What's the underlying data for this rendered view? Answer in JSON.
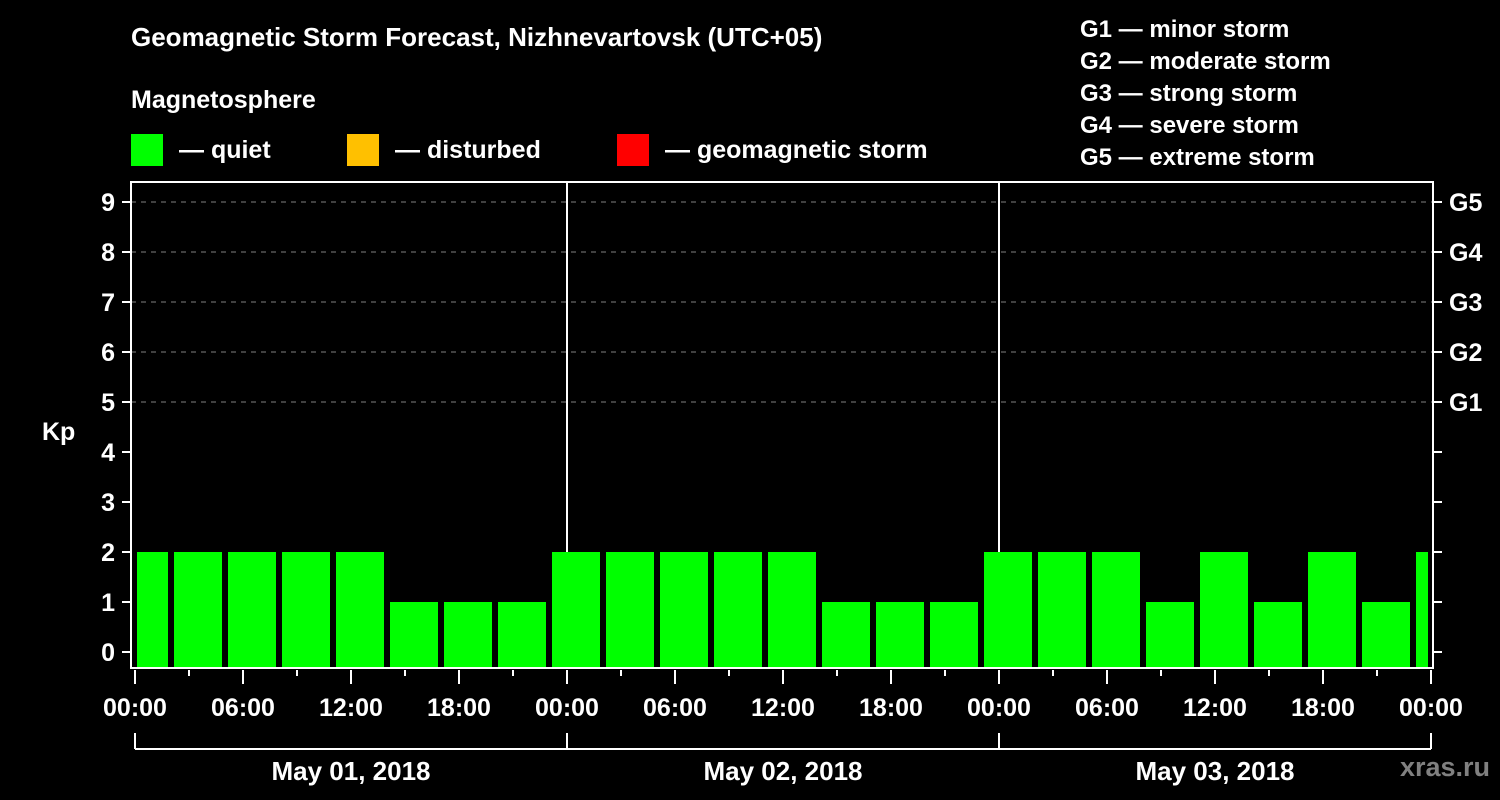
{
  "chart_data": {
    "type": "bar",
    "title": "Geomagnetic Storm Forecast, Nizhnevartovsk (UTC+05)",
    "subtitle": "Magnetosphere",
    "ylabel": "Kp",
    "xlabel": "",
    "ylim": [
      0,
      9
    ],
    "yticks": [
      0,
      1,
      2,
      3,
      4,
      5,
      6,
      7,
      8,
      9
    ],
    "right_axis_labels": [
      {
        "kp": 5,
        "label": "G1"
      },
      {
        "kp": 6,
        "label": "G2"
      },
      {
        "kp": 7,
        "label": "G3"
      },
      {
        "kp": 8,
        "label": "G4"
      },
      {
        "kp": 9,
        "label": "G5"
      }
    ],
    "grid": "dashed horizontal at Kp 5-9",
    "xtick_labels": [
      "00:00",
      "06:00",
      "12:00",
      "18:00",
      "00:00",
      "06:00",
      "12:00",
      "18:00",
      "00:00",
      "06:00",
      "12:00",
      "18:00",
      "00:00"
    ],
    "days": [
      "May 01, 2018",
      "May 02, 2018",
      "May 03, 2018"
    ],
    "bar_interval_hours": 3,
    "values": [
      2,
      2,
      2,
      2,
      2,
      1,
      1,
      1,
      2,
      2,
      2,
      2,
      2,
      1,
      1,
      1,
      2,
      2,
      2,
      1,
      2,
      1,
      2,
      1,
      2
    ],
    "bar_status": "quiet",
    "legend": [
      {
        "label": "— quiet",
        "color": "#00ff00"
      },
      {
        "label": "— disturbed",
        "color": "#ffc000"
      },
      {
        "label": "— geomagnetic storm",
        "color": "#ff0000"
      }
    ],
    "storm_scale": [
      "G1 — minor storm",
      "G2 — moderate storm",
      "G3 — strong storm",
      "G4 — severe storm",
      "G5 — extreme storm"
    ]
  },
  "header": {
    "title": "Geomagnetic Storm Forecast, Nizhnevartovsk (UTC+05)",
    "subtitle": "Magnetosphere"
  },
  "legend": {
    "items": [
      {
        "label": "— quiet",
        "color": "#00ff00"
      },
      {
        "label": "— disturbed",
        "color": "#ffc000"
      },
      {
        "label": "— geomagnetic storm",
        "color": "#ff0000"
      }
    ]
  },
  "storm_scale": {
    "items": [
      "G1 — minor storm",
      "G2 — moderate storm",
      "G3 — strong storm",
      "G4 — severe storm",
      "G5 — extreme storm"
    ]
  },
  "watermark": "xras.ru",
  "colors": {
    "background": "#000000",
    "quiet": "#00ff00",
    "disturbed": "#ffc000",
    "storm": "#ff0000",
    "grid": "#808080",
    "axis": "#ffffff"
  }
}
